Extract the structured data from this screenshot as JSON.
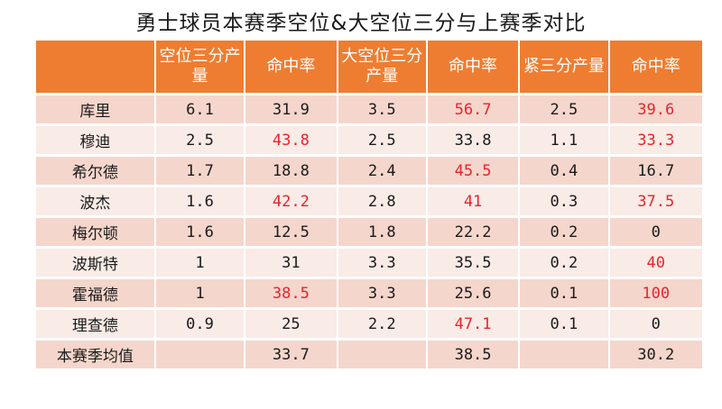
{
  "title": "勇士球员本赛季空位&大空位三分与上赛季对比",
  "colors": {
    "header_bg": "#ee7d31",
    "row_odd": "#f5d6cc",
    "row_even": "#f9ebe6",
    "highlight": "#e8242a"
  },
  "headers": [
    "",
    "空位三分产量",
    "命中率",
    "大空位三分产量",
    "命中率",
    "紧三分产量",
    "命中率"
  ],
  "rows": [
    {
      "cells": [
        "库里",
        "6.1",
        "31.9",
        "3.5",
        "56.7",
        "2.5",
        "39.6"
      ],
      "red": [
        4,
        6
      ]
    },
    {
      "cells": [
        "穆迪",
        "2.5",
        "43.8",
        "2.5",
        "33.8",
        "1.1",
        "33.3"
      ],
      "red": [
        2,
        6
      ]
    },
    {
      "cells": [
        "希尔德",
        "1.7",
        "18.8",
        "2.4",
        "45.5",
        "0.4",
        "16.7"
      ],
      "red": [
        4
      ]
    },
    {
      "cells": [
        "波杰",
        "1.6",
        "42.2",
        "2.8",
        "41",
        "0.3",
        "37.5"
      ],
      "red": [
        2,
        4,
        6
      ]
    },
    {
      "cells": [
        "梅尔顿",
        "1.6",
        "12.5",
        "1.8",
        "22.2",
        "0.2",
        "0"
      ],
      "red": []
    },
    {
      "cells": [
        "波斯特",
        "1",
        "31",
        "3.3",
        "35.5",
        "0.2",
        "40"
      ],
      "red": [
        6
      ]
    },
    {
      "cells": [
        "霍福德",
        "1",
        "38.5",
        "3.3",
        "25.6",
        "0.1",
        "100"
      ],
      "red": [
        2,
        6
      ]
    },
    {
      "cells": [
        "理查德",
        "0.9",
        "25",
        "2.2",
        "47.1",
        "0.1",
        "0"
      ],
      "red": [
        4
      ]
    },
    {
      "cells": [
        "本赛季均值",
        "",
        "33.7",
        "",
        "38.5",
        "",
        "30.2"
      ],
      "red": []
    }
  ]
}
